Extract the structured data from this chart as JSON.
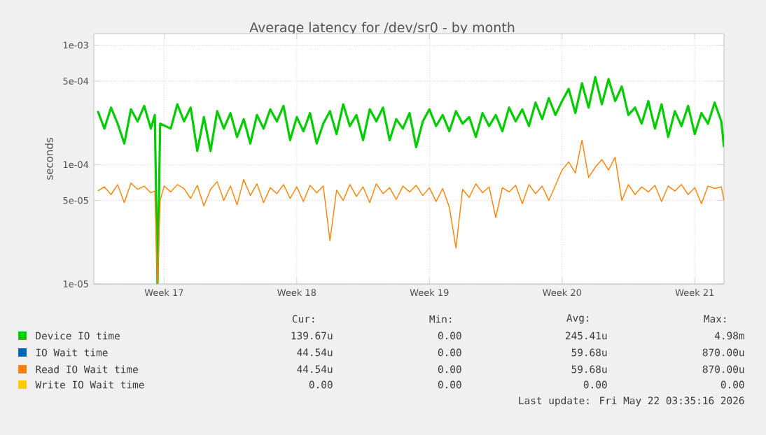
{
  "chart_data": {
    "type": "line",
    "title": "Average latency for /dev/sr0 - by month",
    "ylabel": "seconds",
    "log": "y",
    "grid": true,
    "legend": "bottom",
    "marker": "none",
    "line_style": "solid",
    "xlim": [
      "2026-04-19T19:00",
      "2026-05-23T01:00"
    ],
    "xticks": [
      {
        "value": "2026-04-23T12:00",
        "label": "Week 17"
      },
      {
        "value": "2026-04-30T12:00",
        "label": "Week 18"
      },
      {
        "value": "2026-05-07T12:00",
        "label": "Week 19"
      },
      {
        "value": "2026-05-14T12:00",
        "label": "Week 20"
      },
      {
        "value": "2026-05-21T12:00",
        "label": "Week 21"
      }
    ],
    "ylim": [
      1e-05,
      0.00125
    ],
    "yticks": [
      {
        "value": 1e-05,
        "label": "1e-05"
      },
      {
        "value": 5e-05,
        "label": "5e-05"
      },
      {
        "value": 0.0001,
        "label": "1e-04"
      },
      {
        "value": 0.0005,
        "label": "5e-04"
      },
      {
        "value": 0.001,
        "label": "1e-03"
      }
    ],
    "series": [
      {
        "name": "Device IO time",
        "color": "#00cc00",
        "x": [
          "2026-04-20T00:00",
          "2026-04-20T08:24",
          "2026-04-20T16:48",
          "2026-04-21T01:12",
          "2026-04-21T09:36",
          "2026-04-21T18:00",
          "2026-04-22T02:24",
          "2026-04-22T10:48",
          "2026-04-22T19:12",
          "2026-04-23T00:15",
          "2026-04-23T03:36",
          "2026-04-23T07:00",
          "2026-04-23T20:24",
          "2026-04-24T04:48",
          "2026-04-24T13:12",
          "2026-04-24T21:36",
          "2026-04-25T06:00",
          "2026-04-25T14:24",
          "2026-04-25T22:48",
          "2026-04-26T07:12",
          "2026-04-26T15:36",
          "2026-04-27T00:00",
          "2026-04-27T08:24",
          "2026-04-27T16:48",
          "2026-04-28T01:12",
          "2026-04-28T09:36",
          "2026-04-28T18:00",
          "2026-04-29T02:24",
          "2026-04-29T10:48",
          "2026-04-29T19:12",
          "2026-04-30T03:36",
          "2026-04-30T12:00",
          "2026-04-30T20:24",
          "2026-05-01T04:48",
          "2026-05-01T13:12",
          "2026-05-01T21:36",
          "2026-05-02T06:00",
          "2026-05-02T14:24",
          "2026-05-02T22:48",
          "2026-05-03T07:12",
          "2026-05-03T15:36",
          "2026-05-04T00:00",
          "2026-05-04T08:24",
          "2026-05-04T16:48",
          "2026-05-05T01:12",
          "2026-05-05T09:36",
          "2026-05-05T18:00",
          "2026-05-06T02:24",
          "2026-05-06T10:48",
          "2026-05-06T19:12",
          "2026-05-07T03:36",
          "2026-05-07T12:00",
          "2026-05-07T20:24",
          "2026-05-08T04:48",
          "2026-05-08T13:12",
          "2026-05-08T21:36",
          "2026-05-09T06:00",
          "2026-05-09T14:24",
          "2026-05-09T22:48",
          "2026-05-10T07:12",
          "2026-05-10T15:36",
          "2026-05-11T00:00",
          "2026-05-11T08:24",
          "2026-05-11T16:48",
          "2026-05-12T01:12",
          "2026-05-12T09:36",
          "2026-05-12T18:00",
          "2026-05-13T02:24",
          "2026-05-13T10:48",
          "2026-05-13T19:12",
          "2026-05-14T03:36",
          "2026-05-14T12:00",
          "2026-05-14T20:24",
          "2026-05-15T04:48",
          "2026-05-15T13:12",
          "2026-05-15T21:36",
          "2026-05-16T06:00",
          "2026-05-16T14:24",
          "2026-05-16T22:48",
          "2026-05-17T07:12",
          "2026-05-17T15:36",
          "2026-05-18T00:00",
          "2026-05-18T08:24",
          "2026-05-18T16:48",
          "2026-05-19T01:12",
          "2026-05-19T09:36",
          "2026-05-19T18:00",
          "2026-05-20T02:24",
          "2026-05-20T10:48",
          "2026-05-20T19:12",
          "2026-05-21T03:36",
          "2026-05-21T12:00",
          "2026-05-21T20:24",
          "2026-05-22T04:48",
          "2026-05-22T13:12",
          "2026-05-22T21:36",
          "2026-05-23T01:00"
        ],
        "values": [
          0.00028,
          0.0002,
          0.0003,
          0.00022,
          0.00015,
          0.00029,
          0.00023,
          0.00031,
          0.0002,
          0.00026,
          1e-05,
          0.00022,
          0.0002,
          0.00032,
          0.00023,
          0.0003,
          0.00013,
          0.00025,
          0.00013,
          0.00028,
          0.0002,
          0.00027,
          0.00017,
          0.00024,
          0.00015,
          0.00026,
          0.0002,
          0.00029,
          0.00023,
          0.00031,
          0.00016,
          0.00025,
          0.00019,
          0.00027,
          0.00015,
          0.00022,
          0.00028,
          0.00018,
          0.00032,
          0.00021,
          0.00026,
          0.00016,
          0.00029,
          0.00023,
          0.0003,
          0.00016,
          0.00024,
          0.0002,
          0.00027,
          0.00014,
          0.00023,
          0.00029,
          0.00021,
          0.00026,
          0.00019,
          0.00028,
          0.00022,
          0.00025,
          0.00017,
          0.00027,
          0.00021,
          0.00026,
          0.00019,
          0.0003,
          0.00023,
          0.00029,
          0.00021,
          0.00033,
          0.00024,
          0.00036,
          0.00026,
          0.00034,
          0.00043,
          0.00027,
          0.00048,
          0.0003,
          0.00054,
          0.00032,
          0.00052,
          0.00034,
          0.00045,
          0.00026,
          0.0003,
          0.00022,
          0.00034,
          0.0002,
          0.00032,
          0.00017,
          0.00028,
          0.00021,
          0.00031,
          0.00018,
          0.00027,
          0.00022,
          0.00033,
          0.00023,
          0.00014
        ]
      },
      {
        "name": "IO Wait time",
        "color": "#0066b3",
        "values": [
          null
        ]
      },
      {
        "name": "Read IO Wait time",
        "color": "#ff8000",
        "x": [
          "2026-04-20T00:00",
          "2026-04-20T08:24",
          "2026-04-20T16:48",
          "2026-04-21T01:12",
          "2026-04-21T09:36",
          "2026-04-21T18:00",
          "2026-04-22T02:24",
          "2026-04-22T10:48",
          "2026-04-22T19:12",
          "2026-04-23T00:15",
          "2026-04-23T03:36",
          "2026-04-23T07:00",
          "2026-04-23T12:00",
          "2026-04-23T20:24",
          "2026-04-24T04:48",
          "2026-04-24T13:12",
          "2026-04-24T21:36",
          "2026-04-25T06:00",
          "2026-04-25T14:24",
          "2026-04-25T22:48",
          "2026-04-26T07:12",
          "2026-04-26T15:36",
          "2026-04-27T00:00",
          "2026-04-27T08:24",
          "2026-04-27T16:48",
          "2026-04-28T01:12",
          "2026-04-28T09:36",
          "2026-04-28T18:00",
          "2026-04-29T02:24",
          "2026-04-29T10:48",
          "2026-04-29T19:12",
          "2026-04-30T03:36",
          "2026-04-30T12:00",
          "2026-04-30T20:24",
          "2026-05-01T04:48",
          "2026-05-01T13:12",
          "2026-05-01T21:36",
          "2026-05-02T06:00",
          "2026-05-02T14:24",
          "2026-05-02T22:48",
          "2026-05-03T07:12",
          "2026-05-03T15:36",
          "2026-05-04T00:00",
          "2026-05-04T08:24",
          "2026-05-04T16:48",
          "2026-05-05T01:12",
          "2026-05-05T09:36",
          "2026-05-05T18:00",
          "2026-05-06T02:24",
          "2026-05-06T10:48",
          "2026-05-06T19:12",
          "2026-05-07T03:36",
          "2026-05-07T12:00",
          "2026-05-07T20:24",
          "2026-05-08T04:48",
          "2026-05-08T13:12",
          "2026-05-08T21:36",
          "2026-05-09T06:00",
          "2026-05-09T14:24",
          "2026-05-09T22:48",
          "2026-05-10T07:12",
          "2026-05-10T15:36",
          "2026-05-11T00:00",
          "2026-05-11T08:24",
          "2026-05-11T16:48",
          "2026-05-12T01:12",
          "2026-05-12T09:36",
          "2026-05-12T18:00",
          "2026-05-13T02:24",
          "2026-05-13T10:48",
          "2026-05-13T19:12",
          "2026-05-14T03:36",
          "2026-05-14T12:00",
          "2026-05-14T20:24",
          "2026-05-15T04:48",
          "2026-05-15T13:12",
          "2026-05-15T21:36",
          "2026-05-16T06:00",
          "2026-05-16T14:24",
          "2026-05-16T22:48",
          "2026-05-17T07:12",
          "2026-05-17T15:36",
          "2026-05-18T00:00",
          "2026-05-18T08:24",
          "2026-05-18T16:48",
          "2026-05-19T01:12",
          "2026-05-19T09:36",
          "2026-05-19T18:00",
          "2026-05-20T02:24",
          "2026-05-20T10:48",
          "2026-05-20T19:12",
          "2026-05-21T03:36",
          "2026-05-21T12:00",
          "2026-05-21T20:24",
          "2026-05-22T04:48",
          "2026-05-22T13:12",
          "2026-05-22T21:36",
          "2026-05-23T01:00"
        ],
        "values": [
          6e-05,
          6.5e-05,
          5.6e-05,
          6.8e-05,
          4.8e-05,
          7e-05,
          6.2e-05,
          6.6e-05,
          5.8e-05,
          6e-05,
          1e-05,
          5e-05,
          6.6e-05,
          5.9e-05,
          6.8e-05,
          6.3e-05,
          5.2e-05,
          6.7e-05,
          4.5e-05,
          6.2e-05,
          7.2e-05,
          5e-05,
          6.6e-05,
          4.6e-05,
          7.5e-05,
          5.5e-05,
          6.9e-05,
          4.8e-05,
          6.4e-05,
          5.7e-05,
          6.8e-05,
          5.2e-05,
          6.5e-05,
          4.9e-05,
          6.7e-05,
          5.8e-05,
          6.6e-05,
          2.3e-05,
          6.1e-05,
          5e-05,
          6.8e-05,
          5.4e-05,
          6.5e-05,
          4.8e-05,
          6.9e-05,
          5.7e-05,
          6.4e-05,
          5.1e-05,
          6.6e-05,
          5.9e-05,
          6.7e-05,
          5.5e-05,
          6.4e-05,
          4.9e-05,
          6.3e-05,
          4.4e-05,
          2e-05,
          6.2e-05,
          5.3e-05,
          6.9e-05,
          5.8e-05,
          6.5e-05,
          3.6e-05,
          6.4e-05,
          5.9e-05,
          6.7e-05,
          4.7e-05,
          6.8e-05,
          5.7e-05,
          6.6e-05,
          5e-05,
          6.7e-05,
          9e-05,
          0.000105,
          8.5e-05,
          0.00016,
          7.8e-05,
          9.5e-05,
          0.00011,
          9e-05,
          0.000115,
          5e-05,
          6.8e-05,
          5.6e-05,
          6.5e-05,
          5.9e-05,
          6.7e-05,
          4.9e-05,
          6.6e-05,
          6e-05,
          6.8e-05,
          5.6e-05,
          6.4e-05,
          4.7e-05,
          6.6e-05,
          6.3e-05,
          6.5e-05,
          5e-05
        ]
      },
      {
        "name": "Write IO Wait time",
        "color": "#ffcc00",
        "values": [
          null
        ]
      }
    ],
    "annotations": [
      "Cur:",
      "Min:",
      "Avg:",
      "Max:",
      "139.67u",
      "0.00",
      "245.41u",
      "4.98m",
      "44.54u",
      "0.00",
      "59.68u",
      "870.00u",
      "44.54u",
      "0.00",
      "59.68u",
      "870.00u",
      "0.00",
      "0.00",
      "0.00",
      "0.00",
      "Last update: Fri May 22 03:35:16 2026"
    ]
  }
}
